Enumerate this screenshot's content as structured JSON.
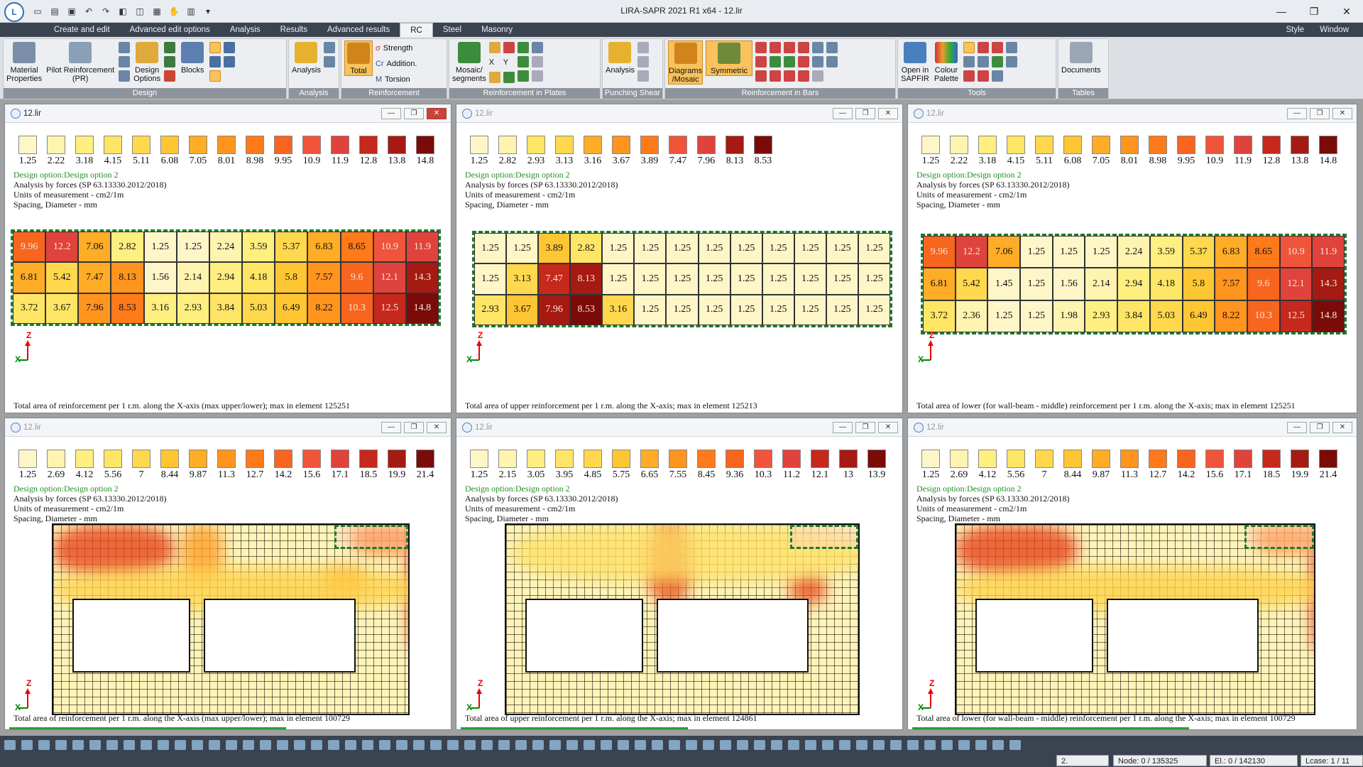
{
  "app": {
    "title": "LIRA-SAPR  2021 R1 x64 - 12.lir",
    "logo": "lira-logo-icon"
  },
  "tabs": [
    "Create and edit",
    "Advanced edit options",
    "Analysis",
    "Results",
    "Advanced results",
    "RC",
    "Steel",
    "Masonry"
  ],
  "active_tab": "RC",
  "tabs_right": {
    "style": "Style",
    "window": "Window"
  },
  "ribbon": {
    "groups": [
      {
        "label": "Design",
        "buttons": [
          "Material\nProperties",
          "Pilot Reinforcement\n(PR)",
          "Design\nOptions",
          "Blocks"
        ]
      },
      {
        "label": "Analysis",
        "buttons": [
          "Analysis"
        ]
      },
      {
        "label": "Reinforcement",
        "buttons": [
          "Total"
        ],
        "small": [
          "Strength",
          "Addition.",
          "Torsion"
        ]
      },
      {
        "label": "Reinforcement in Plates",
        "buttons": [
          "Mosaic/\nsegments"
        ],
        "small": [
          "X",
          "Y"
        ]
      },
      {
        "label": "Punching Shear",
        "buttons": [
          "Analysis"
        ]
      },
      {
        "label": "Reinforcement in Bars",
        "buttons": [
          "Diagrams\n/Mosaic",
          "Symmetric"
        ]
      },
      {
        "label": "Tools",
        "buttons": [
          "Open in\nSAPFIR",
          "Colour\nPalette"
        ]
      },
      {
        "label": "Tables",
        "buttons": [
          "Documents"
        ]
      }
    ]
  },
  "design_option": "Design option:Design option 2",
  "analysis_by": "Analysis by forces (SP 63.13330.2012/2018)",
  "units": "Units of measurement - cm2/1m",
  "spacing": "Spacing, Diameter - mm",
  "colors": {
    "accent": "#2e9a3a",
    "active_close": "#c8443a",
    "dark_bar": "#3b4350"
  },
  "panes": [
    {
      "title": "12.lir",
      "active": true,
      "legend": [
        "1.25",
        "2.22",
        "3.18",
        "4.15",
        "5.11",
        "6.08",
        "7.05",
        "8.01",
        "8.98",
        "9.95",
        "10.9",
        "11.9",
        "12.8",
        "13.8",
        "14.8"
      ],
      "caption": "Total area of reinforcement per 1 r.m. along the X-axis (max upper/lower); max in element 125251",
      "table": [
        [
          "9.96",
          "12.2",
          "7.06",
          "2.82",
          "1.25",
          "1.25",
          "2.24",
          "3.59",
          "5.37",
          "6.83",
          "8.65",
          "10.9",
          "11.9"
        ],
        [
          "6.81",
          "5.42",
          "7.47",
          "8.13",
          "1.56",
          "2.14",
          "2.94",
          "4.18",
          "5.8",
          "7.57",
          "9.6",
          "12.1",
          "14.3"
        ],
        [
          "3.72",
          "3.67",
          "7.96",
          "8.53",
          "3.16",
          "2.93",
          "3.84",
          "5.03",
          "6.49",
          "8.22",
          "10.3",
          "12.5",
          "14.8"
        ]
      ]
    },
    {
      "title": "12.lir",
      "active": false,
      "legend": [
        "1.25",
        "2.82",
        "2.93",
        "3.13",
        "3.16",
        "3.67",
        "3.89",
        "7.47",
        "7.96",
        "8.13",
        "8.53"
      ],
      "caption": "Total area of upper reinforcement per 1 r.m. along the X-axis; max in element 125213",
      "table": [
        [
          "1.25",
          "1.25",
          "3.89",
          "2.82",
          "1.25",
          "1.25",
          "1.25",
          "1.25",
          "1.25",
          "1.25",
          "1.25",
          "1.25",
          "1.25"
        ],
        [
          "1.25",
          "3.13",
          "7.47",
          "8.13",
          "1.25",
          "1.25",
          "1.25",
          "1.25",
          "1.25",
          "1.25",
          "1.25",
          "1.25",
          "1.25"
        ],
        [
          "2.93",
          "3.67",
          "7.96",
          "8.53",
          "3.16",
          "1.25",
          "1.25",
          "1.25",
          "1.25",
          "1.25",
          "1.25",
          "1.25",
          "1.25"
        ]
      ]
    },
    {
      "title": "12.lir",
      "active": false,
      "legend": [
        "1.25",
        "2.22",
        "3.18",
        "4.15",
        "5.11",
        "6.08",
        "7.05",
        "8.01",
        "8.98",
        "9.95",
        "10.9",
        "11.9",
        "12.8",
        "13.8",
        "14.8"
      ],
      "caption": "Total area of lower (for wall-beam - middle) reinforcement per 1 r.m. along the X-axis; max in element 125251",
      "table": [
        [
          "9.96",
          "12.2",
          "7.06",
          "1.25",
          "1.25",
          "1.25",
          "2.24",
          "3.59",
          "5.37",
          "6.83",
          "8.65",
          "10.9",
          "11.9"
        ],
        [
          "6.81",
          "5.42",
          "1.45",
          "1.25",
          "1.56",
          "2.14",
          "2.94",
          "4.18",
          "5.8",
          "7.57",
          "9.6",
          "12.1",
          "14.3"
        ],
        [
          "3.72",
          "2.36",
          "1.25",
          "1.25",
          "1.98",
          "2.93",
          "3.84",
          "5.03",
          "6.49",
          "8.22",
          "10.3",
          "12.5",
          "14.8"
        ]
      ]
    },
    {
      "title": "12.lir",
      "active": false,
      "legend": [
        "1.25",
        "2.69",
        "4.12",
        "5.56",
        "7",
        "8.44",
        "9.87",
        "11.3",
        "12.7",
        "14.2",
        "15.6",
        "17.1",
        "18.5",
        "19.9",
        "21.4"
      ],
      "caption": "Total area of reinforcement per 1 r.m. along the X-axis (max upper/lower); max in element 100729"
    },
    {
      "title": "12.lir",
      "active": false,
      "legend": [
        "1.25",
        "2.15",
        "3.05",
        "3.95",
        "4.85",
        "5.75",
        "6.65",
        "7.55",
        "8.45",
        "9.36",
        "10.3",
        "11.2",
        "12.1",
        "13",
        "13.9"
      ],
      "caption": "Total area of upper reinforcement per 1 r.m. along the X-axis; max in element 124861"
    },
    {
      "title": "12.lir",
      "active": false,
      "legend": [
        "1.25",
        "2.69",
        "4.12",
        "5.56",
        "7",
        "8.44",
        "9.87",
        "11.3",
        "12.7",
        "14.2",
        "15.6",
        "17.1",
        "18.5",
        "19.9",
        "21.4"
      ],
      "caption": "Total area of lower (for wall-beam - middle) reinforcement per 1 r.m. along the X-axis; max in element 100729"
    }
  ],
  "axes": {
    "z": "Z",
    "x": "X"
  },
  "status": {
    "combo": "2.",
    "node": "Node: 0 / 135325",
    "el": "El.: 0 / 142130",
    "lcase": "Lcase: 1 / 11"
  }
}
